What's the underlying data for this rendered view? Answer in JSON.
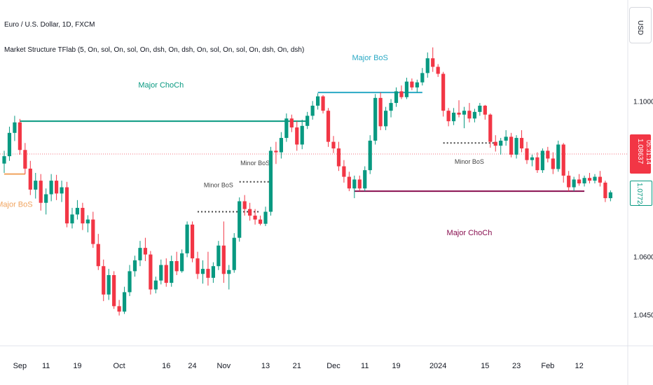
{
  "header": {
    "symbol_title": "Euro / U.S. Dollar, 1D, FXCM",
    "indicator_title": "Market Structure TFlab (5, On, sol, On, sol, On, dsh, On, dsh, On, sol, On, sol, On, dsh, On, dsh)"
  },
  "price_scale": {
    "currency": "USD",
    "current_price": "1.08637",
    "countdown": "05:31:14",
    "level_price": "1.07724"
  },
  "colors": {
    "up": "#089981",
    "down": "#f23645",
    "major_bos": "#2aa9c5",
    "major_choch_up": "#089981",
    "major_choch_down": "#880e4f",
    "minor": "#444444",
    "bos_orange": "#f0a35e"
  },
  "chart_data": {
    "type": "candlestick",
    "ylim": [
      1.037,
      1.126
    ],
    "y_ticks": [
      "1.10000",
      "1.06000",
      "1.04500"
    ],
    "y_tick_values": [
      1.1,
      1.06,
      1.045
    ],
    "x_ticks": [
      "Sep",
      "11",
      "19",
      "Oct",
      "16",
      "24",
      "Nov",
      "13",
      "21",
      "Dec",
      "11",
      "19",
      "2024",
      "15",
      "23",
      "Feb",
      "12"
    ],
    "x_tick_index": [
      3,
      8,
      14,
      22,
      31,
      36,
      42,
      50,
      56,
      63,
      69,
      75,
      83,
      92,
      98,
      104,
      110
    ],
    "candles": [
      [
        1.0839,
        1.0872,
        1.0815,
        1.0858
      ],
      [
        1.0858,
        1.0934,
        1.0846,
        1.0918
      ],
      [
        1.0918,
        1.0962,
        1.0897,
        1.0945
      ],
      [
        1.0945,
        1.0954,
        1.0862,
        1.0874
      ],
      [
        1.0874,
        1.0892,
        1.0812,
        1.0826
      ],
      [
        1.0826,
        1.0846,
        1.0758,
        1.0772
      ],
      [
        1.0772,
        1.0815,
        1.0749,
        1.0795
      ],
      [
        1.0795,
        1.0812,
        1.0718,
        1.0738
      ],
      [
        1.0738,
        1.0775,
        1.0708,
        1.076
      ],
      [
        1.076,
        1.0812,
        1.0742,
        1.0795
      ],
      [
        1.0795,
        1.081,
        1.0745,
        1.0762
      ],
      [
        1.0762,
        1.0795,
        1.074,
        1.0778
      ],
      [
        1.0778,
        1.0792,
        1.0675,
        1.0685
      ],
      [
        1.0685,
        1.0725,
        1.0672,
        1.0708
      ],
      [
        1.0708,
        1.0745,
        1.0695,
        1.0725
      ],
      [
        1.0725,
        1.0738,
        1.0668,
        1.0685
      ],
      [
        1.0685,
        1.0706,
        1.0662,
        1.0695
      ],
      [
        1.0695,
        1.0715,
        1.0622,
        1.0632
      ],
      [
        1.0632,
        1.0658,
        1.0565,
        1.0575
      ],
      [
        1.0575,
        1.0592,
        1.0485,
        1.0502
      ],
      [
        1.0502,
        1.0568,
        1.0488,
        1.0552
      ],
      [
        1.0552,
        1.0562,
        1.0465,
        1.0472
      ],
      [
        1.0472,
        1.0488,
        1.0448,
        1.0458
      ],
      [
        1.0458,
        1.0522,
        1.0452,
        1.0508
      ],
      [
        1.0508,
        1.0578,
        1.0498,
        1.0562
      ],
      [
        1.0562,
        1.0602,
        1.0548,
        1.059
      ],
      [
        1.059,
        1.064,
        1.0575,
        1.0622
      ],
      [
        1.0622,
        1.0648,
        1.0588,
        1.0605
      ],
      [
        1.0605,
        1.0614,
        1.0502,
        1.0515
      ],
      [
        1.0515,
        1.0548,
        1.0505,
        1.0538
      ],
      [
        1.0538,
        1.0592,
        1.0528,
        1.0578
      ],
      [
        1.0578,
        1.0595,
        1.0522,
        1.0532
      ],
      [
        1.0532,
        1.0602,
        1.0522,
        1.0588
      ],
      [
        1.0588,
        1.0612,
        1.0552,
        1.0562
      ],
      [
        1.0562,
        1.0618,
        1.0558,
        1.0608
      ],
      [
        1.0608,
        1.069,
        1.0598,
        1.0682
      ],
      [
        1.0682,
        1.069,
        1.0585,
        1.0595
      ],
      [
        1.0595,
        1.0612,
        1.0542,
        1.0555
      ],
      [
        1.0555,
        1.059,
        1.053,
        1.0568
      ],
      [
        1.0568,
        1.0612,
        1.0525,
        1.0545
      ],
      [
        1.0545,
        1.0585,
        1.0532,
        1.0575
      ],
      [
        1.0575,
        1.064,
        1.0565,
        1.0628
      ],
      [
        1.0628,
        1.069,
        1.0532,
        1.0555
      ],
      [
        1.0555,
        1.0578,
        1.0515,
        1.0565
      ],
      [
        1.0565,
        1.066,
        1.0558,
        1.0648
      ],
      [
        1.0648,
        1.0752,
        1.0638,
        1.0742
      ],
      [
        1.0742,
        1.0758,
        1.0705,
        1.0722
      ],
      [
        1.0722,
        1.0738,
        1.0692,
        1.0705
      ],
      [
        1.0705,
        1.0722,
        1.0682,
        1.0695
      ],
      [
        1.0695,
        1.0705,
        1.068,
        1.0684
      ],
      [
        1.0684,
        1.0728,
        1.0678,
        1.0715
      ],
      [
        1.0715,
        1.0882,
        1.0705,
        1.0872
      ],
      [
        1.0872,
        1.0895,
        1.0838,
        1.0868
      ],
      [
        1.0868,
        1.092,
        1.0852,
        1.0905
      ],
      [
        1.0905,
        1.0968,
        1.0895,
        1.0955
      ],
      [
        1.0955,
        1.0965,
        1.092,
        1.0932
      ],
      [
        1.0932,
        1.0948,
        1.0872,
        1.0888
      ],
      [
        1.0888,
        1.0952,
        1.0876,
        1.0936
      ],
      [
        1.0936,
        1.0972,
        1.0928,
        1.0962
      ],
      [
        1.0962,
        1.1,
        1.0952,
        1.0988
      ],
      [
        1.0988,
        1.102,
        1.0978,
        1.1012
      ],
      [
        1.1012,
        1.1015,
        1.0968,
        1.0975
      ],
      [
        1.0975,
        1.0982,
        1.0882,
        1.0895
      ],
      [
        1.0895,
        1.091,
        1.0866,
        1.0878
      ],
      [
        1.0878,
        1.0895,
        1.082,
        1.0832
      ],
      [
        1.0832,
        1.0848,
        1.079,
        1.0805
      ],
      [
        1.0805,
        1.0818,
        1.0768,
        1.0775
      ],
      [
        1.0775,
        1.0808,
        1.075,
        1.0798
      ],
      [
        1.0798,
        1.0808,
        1.0768,
        1.0775
      ],
      [
        1.0775,
        1.0832,
        1.0768,
        1.0822
      ],
      [
        1.0822,
        1.0912,
        1.0812,
        1.0898
      ],
      [
        1.0898,
        1.1018,
        1.0888,
        1.1008
      ],
      [
        1.1008,
        1.1022,
        1.0925,
        1.0935
      ],
      [
        1.0935,
        1.0985,
        1.0925,
        1.0975
      ],
      [
        1.0975,
        1.1005,
        1.0958,
        1.0995
      ],
      [
        1.0995,
        1.1035,
        1.0985,
        1.1025
      ],
      [
        1.1025,
        1.104,
        1.1005,
        1.101
      ],
      [
        1.101,
        1.106,
        1.1005,
        1.105
      ],
      [
        1.105,
        1.1058,
        1.1028,
        1.1035
      ],
      [
        1.1035,
        1.1055,
        1.1022,
        1.1048
      ],
      [
        1.1048,
        1.1085,
        1.104,
        1.1072
      ],
      [
        1.1072,
        1.1125,
        1.106,
        1.111
      ],
      [
        1.111,
        1.1138,
        1.1075,
        1.1088
      ],
      [
        1.1088,
        1.1095,
        1.1062,
        1.107
      ],
      [
        1.107,
        1.1075,
        1.096,
        1.0975
      ],
      [
        1.0975,
        1.0982,
        1.0935,
        1.0948
      ],
      [
        1.0948,
        1.0982,
        1.0938,
        1.097
      ],
      [
        1.097,
        1.1002,
        1.0958,
        1.0965
      ],
      [
        1.0965,
        1.0985,
        1.093,
        1.0975
      ],
      [
        1.0975,
        1.0995,
        1.0945,
        1.0955
      ],
      [
        1.0955,
        1.098,
        1.0945,
        1.0972
      ],
      [
        1.0972,
        1.0995,
        1.0962,
        1.0988
      ],
      [
        1.0988,
        1.099,
        1.0952,
        1.0965
      ],
      [
        1.0965,
        1.0968,
        1.088,
        1.0895
      ],
      [
        1.0895,
        1.0912,
        1.087,
        1.0885
      ],
      [
        1.0885,
        1.0905,
        1.0862,
        1.0898
      ],
      [
        1.0898,
        1.0925,
        1.0885,
        1.0908
      ],
      [
        1.0908,
        1.0918,
        1.0855,
        1.0862
      ],
      [
        1.0862,
        1.0912,
        1.0852,
        1.0905
      ],
      [
        1.0905,
        1.0925,
        1.0868,
        1.0878
      ],
      [
        1.0878,
        1.0895,
        1.0838,
        1.0848
      ],
      [
        1.0848,
        1.0862,
        1.0832,
        1.0855
      ],
      [
        1.0855,
        1.0868,
        1.0815,
        1.0822
      ],
      [
        1.0822,
        1.0878,
        1.0815,
        1.0872
      ],
      [
        1.0872,
        1.0882,
        1.0842,
        1.0852
      ],
      [
        1.0852,
        1.0868,
        1.0812,
        1.0825
      ],
      [
        1.0825,
        1.0898,
        1.0818,
        1.0888
      ],
      [
        1.0888,
        1.0892,
        1.079,
        1.0808
      ],
      [
        1.0808,
        1.082,
        1.0768,
        1.0778
      ],
      [
        1.0778,
        1.0805,
        1.0768,
        1.0798
      ],
      [
        1.0798,
        1.0812,
        1.0782,
        1.0788
      ],
      [
        1.0788,
        1.0808,
        1.078,
        1.0802
      ],
      [
        1.0802,
        1.0815,
        1.0788,
        1.0795
      ],
      [
        1.0795,
        1.0812,
        1.0788,
        1.0805
      ],
      [
        1.0805,
        1.082,
        1.078,
        1.079
      ],
      [
        1.079,
        1.0795,
        1.074,
        1.075
      ],
      [
        1.075,
        1.077,
        1.0742,
        1.0765
      ]
    ],
    "structure_lines": [
      {
        "label": "Major ChoCh",
        "price": 1.0948,
        "from": 3,
        "to": 58,
        "style": "solid",
        "color": "#089981",
        "label_pos": [
          30,
          1.1035
        ]
      },
      {
        "label": "Major BoS",
        "price": 1.1022,
        "from": 60,
        "to": 80,
        "style": "solid",
        "color": "#2aa9c5",
        "label_pos": [
          70,
          1.1105
        ]
      },
      {
        "label": "Minor BoS",
        "price": 1.0715,
        "from": 37,
        "to": 49,
        "style": "dashed",
        "color": "#444444",
        "label_pos": [
          41,
          1.0778
        ]
      },
      {
        "label": "Minor BoS",
        "price": 1.0792,
        "from": 45,
        "to": 51,
        "style": "dashed",
        "color": "#444444",
        "label_pos": [
          48,
          1.0835
        ]
      },
      {
        "label": "Minor BoS",
        "price": 1.0892,
        "from": 84,
        "to": 94,
        "style": "dashed",
        "color": "#444444",
        "label_pos": [
          89,
          1.0838
        ]
      },
      {
        "label": "Major ChoCh",
        "price": 1.0768,
        "from": 67,
        "to": 111,
        "style": "solid",
        "color": "#880e4f",
        "label_pos": [
          89,
          1.0655
        ]
      },
      {
        "label": "Major BoS",
        "price": 1.0812,
        "from": 0,
        "to": 4,
        "style": "solid",
        "color": "#f0a35e",
        "label_pos": [
          2,
          1.0728
        ]
      }
    ],
    "current_price_value": 1.08637
  }
}
